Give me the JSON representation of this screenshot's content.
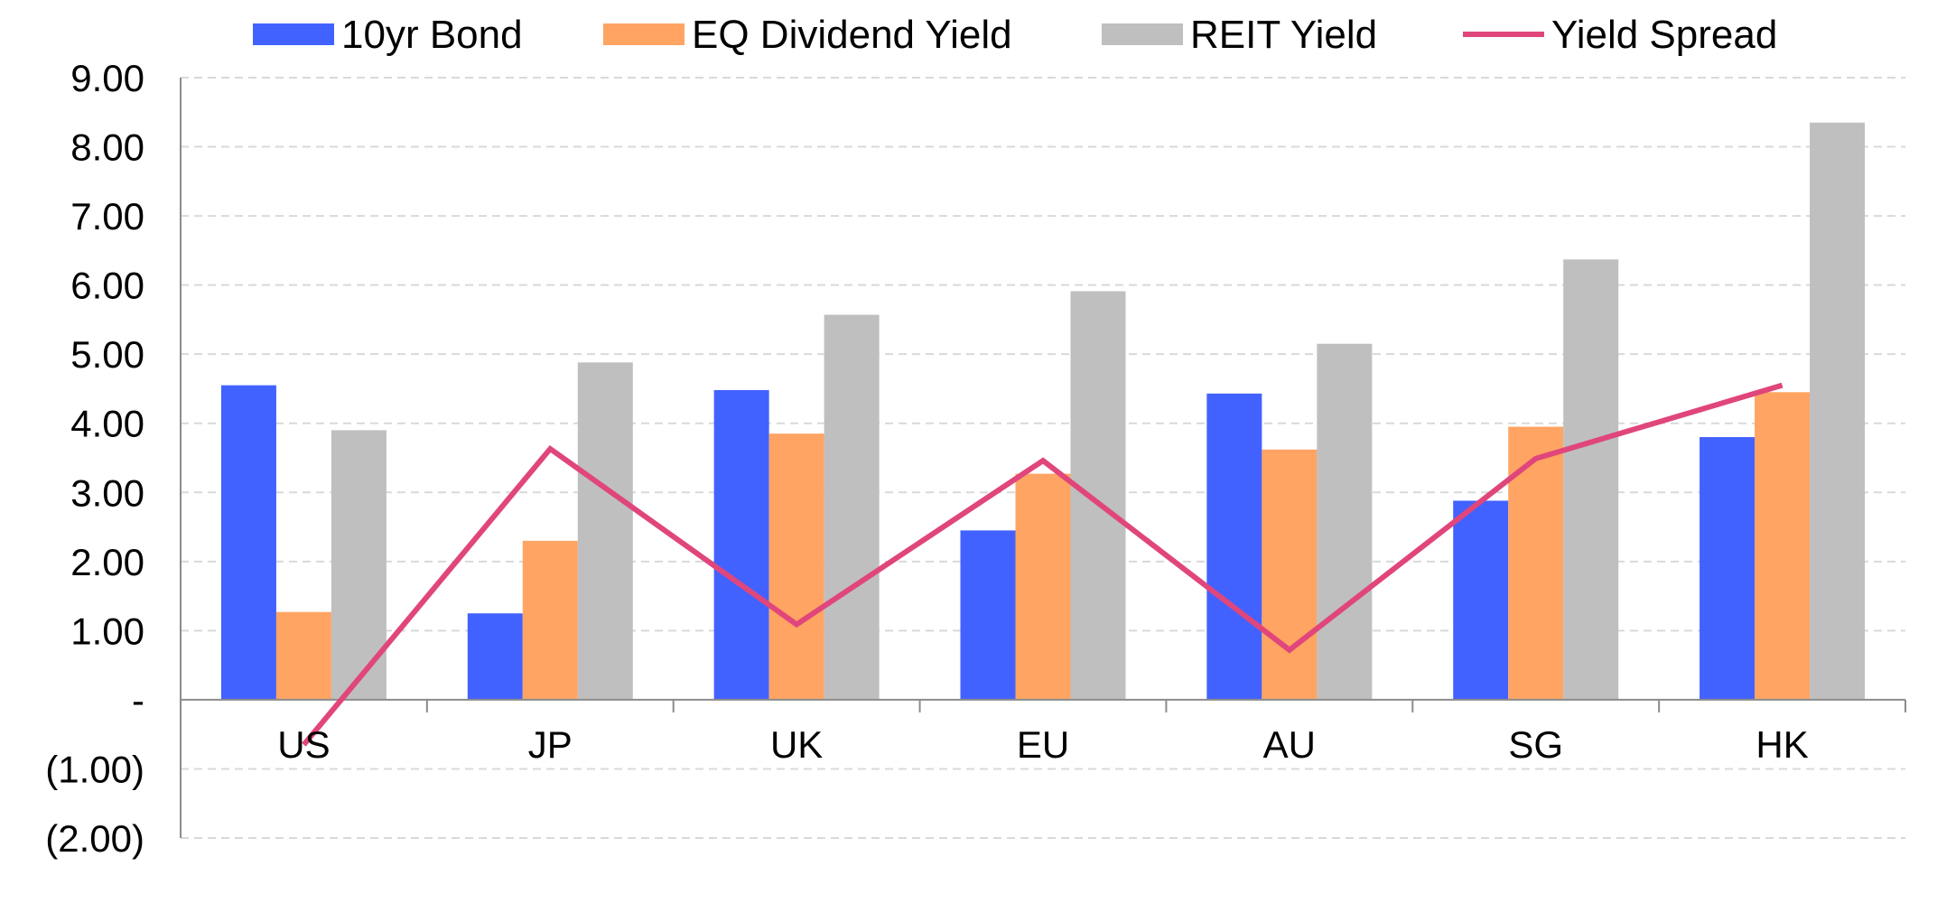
{
  "chart_data": {
    "type": "bar",
    "categories": [
      "US",
      "JP",
      "UK",
      "EU",
      "AU",
      "SG",
      "HK"
    ],
    "series": [
      {
        "name": "10yr Bond",
        "kind": "bar",
        "color": "#4262FF",
        "values": [
          4.55,
          1.25,
          4.48,
          2.45,
          4.43,
          2.88,
          3.8
        ]
      },
      {
        "name": "EQ Dividend Yield",
        "kind": "bar",
        "color": "#FFA463",
        "values": [
          1.27,
          2.3,
          3.85,
          3.27,
          3.62,
          3.95,
          4.45
        ]
      },
      {
        "name": "REIT Yield",
        "kind": "bar",
        "color": "#BFBFBF",
        "values": [
          3.9,
          4.88,
          5.57,
          5.91,
          5.15,
          6.37,
          8.35
        ]
      },
      {
        "name": "Yield Spread",
        "kind": "line",
        "color": "#E0467C",
        "values": [
          -0.65,
          3.63,
          1.09,
          3.46,
          0.72,
          3.49,
          4.55
        ]
      }
    ],
    "ylim": [
      -2,
      9
    ],
    "yticks": [
      {
        "value": 9,
        "label": "9.00"
      },
      {
        "value": 8,
        "label": "8.00"
      },
      {
        "value": 7,
        "label": "7.00"
      },
      {
        "value": 6,
        "label": "6.00"
      },
      {
        "value": 5,
        "label": "5.00"
      },
      {
        "value": 4,
        "label": "4.00"
      },
      {
        "value": 3,
        "label": "3.00"
      },
      {
        "value": 2,
        "label": "2.00"
      },
      {
        "value": 1,
        "label": "1.00"
      },
      {
        "value": 0,
        "label": "-"
      },
      {
        "value": -1,
        "label": "(1.00)"
      },
      {
        "value": -2,
        "label": "(2.00)"
      }
    ],
    "grid": true,
    "legend": "top"
  }
}
